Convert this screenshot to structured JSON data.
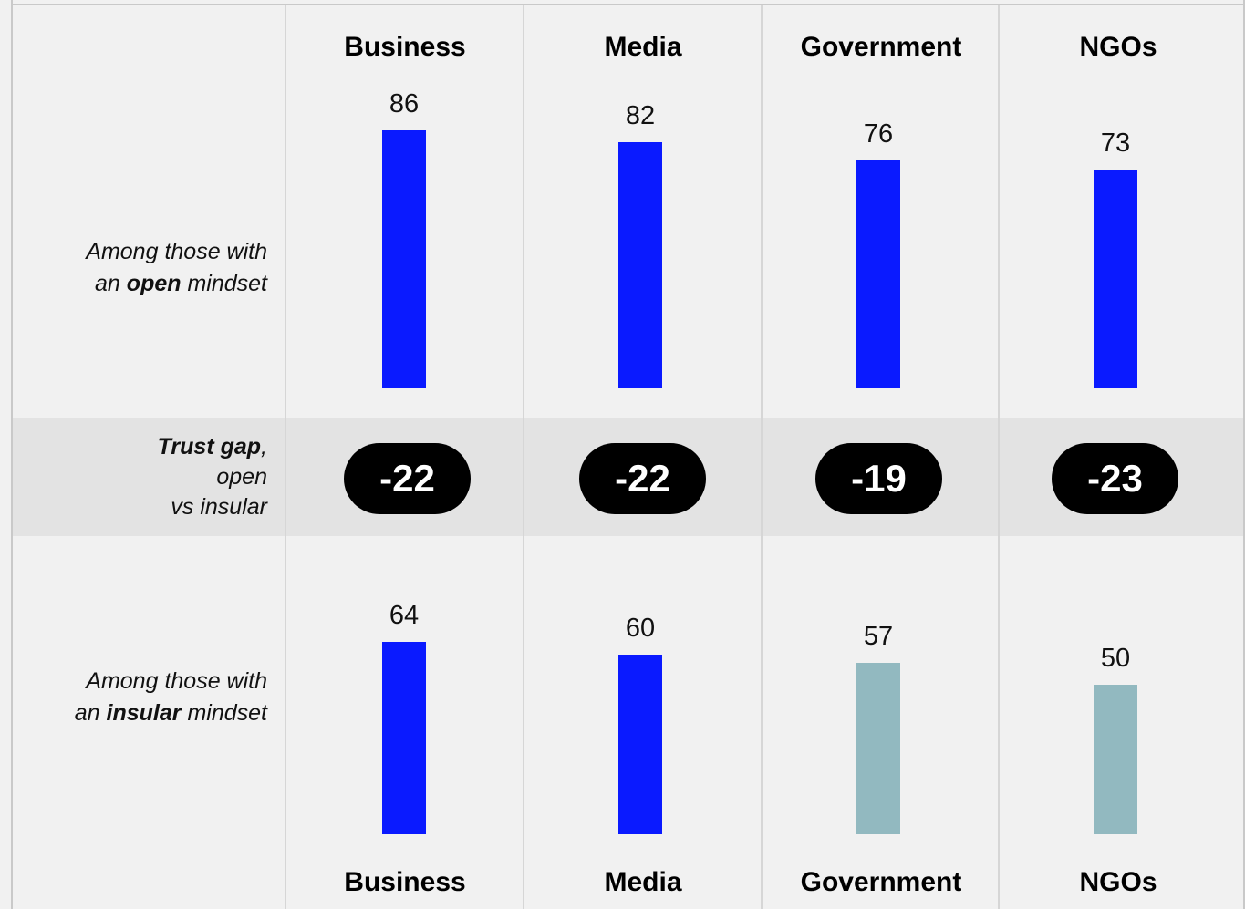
{
  "chart_data": {
    "type": "bar",
    "categories": [
      "Business",
      "Media",
      "Government",
      "NGOs"
    ],
    "series": [
      {
        "label_lines": [
          "Among those with",
          "an ",
          "open",
          " mindset"
        ],
        "values": [
          86,
          82,
          76,
          73
        ],
        "colors": [
          "#0a1aff",
          "#0a1aff",
          "#0a1aff",
          "#0a1aff"
        ]
      },
      {
        "label_lines": [
          "Among those with",
          "an ",
          "insular",
          " mindset"
        ],
        "values": [
          64,
          60,
          57,
          50
        ],
        "colors": [
          "#0a1aff",
          "#0a1aff",
          "#92b9c0",
          "#92b9c0"
        ]
      }
    ],
    "trust_gap": {
      "label_bold": "Trust gap",
      "label_comma": ",",
      "label_line2": "open",
      "label_line3": "vs insular",
      "values": [
        "-22",
        "-22",
        "-19",
        "-23"
      ]
    }
  }
}
